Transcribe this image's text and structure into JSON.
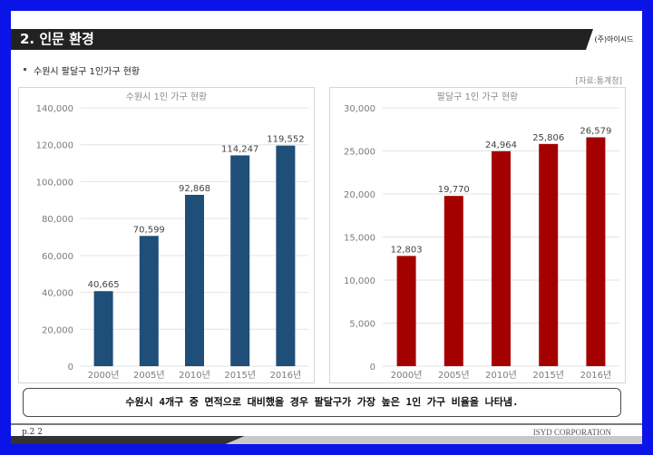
{
  "header": {
    "section_title": "2. 인문 환경",
    "company": "(주)아이시드"
  },
  "subtitle": "수원시 팔달구 1인가구 현황",
  "source": "[자료:통계청]",
  "note": "수원시 4개구 중 면적으로 대비했을 경우 팔달구가 가장 높은 1인 가구 비율을 나타냄.",
  "footer": {
    "page": "p.2 2",
    "company": "ISYD CORPORATION"
  },
  "chart_data": [
    {
      "type": "bar",
      "title": "수원시 1인 가구 현황",
      "categories": [
        "2000년",
        "2005년",
        "2010년",
        "2015년",
        "2016년"
      ],
      "values": [
        40665,
        70599,
        92868,
        114247,
        119552
      ],
      "value_labels": [
        "40,665",
        "70,599",
        "92,868",
        "114,247",
        "119,552"
      ],
      "ylim": [
        0,
        140000
      ],
      "yticks": [
        0,
        20000,
        40000,
        60000,
        80000,
        100000,
        120000,
        140000
      ],
      "ytick_labels": [
        "0",
        "20,000",
        "40,000",
        "60,000",
        "80,000",
        "100,000",
        "120,000",
        "140,000"
      ],
      "color": "#1f4e79",
      "grid": true
    },
    {
      "type": "bar",
      "title": "팔달구 1인 가구 현황",
      "categories": [
        "2000년",
        "2005년",
        "2010년",
        "2015년",
        "2016년"
      ],
      "values": [
        12803,
        19770,
        24964,
        25806,
        26579
      ],
      "value_labels": [
        "12,803",
        "19,770",
        "24,964",
        "25,806",
        "26,579"
      ],
      "ylim": [
        0,
        30000
      ],
      "yticks": [
        0,
        5000,
        10000,
        15000,
        20000,
        25000,
        30000
      ],
      "ytick_labels": [
        "0",
        "5,000",
        "10,000",
        "15,000",
        "20,000",
        "25,000",
        "30,000"
      ],
      "color": "#a50000",
      "grid": true
    }
  ]
}
